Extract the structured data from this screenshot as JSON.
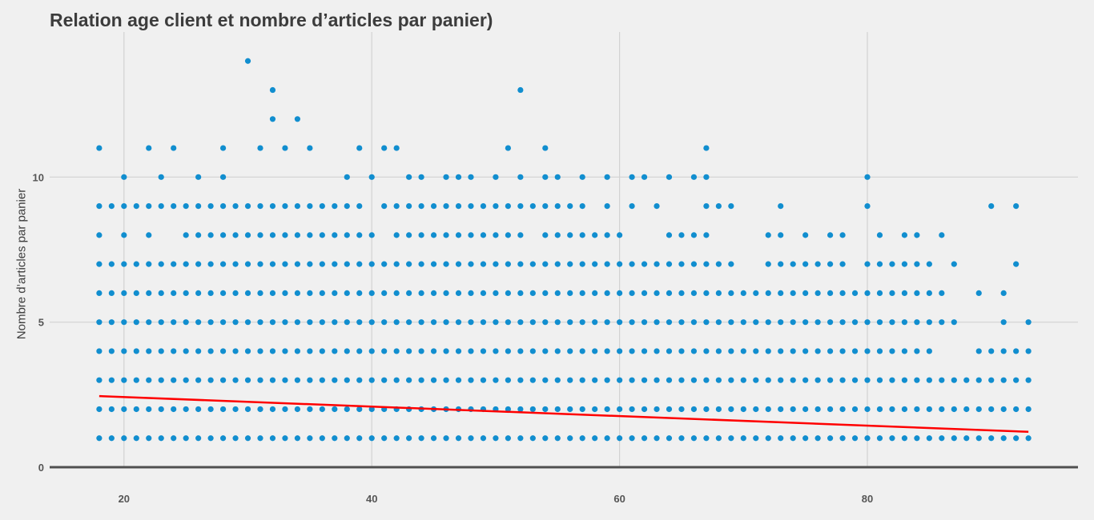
{
  "chart_data": {
    "type": "scatter",
    "title": "Relation age client et nombre d’articles par panier)",
    "xlabel": "",
    "ylabel": "Nombre d’articles par panier",
    "xlim": [
      14,
      97
    ],
    "ylim": [
      0,
      15
    ],
    "xticks": [
      20,
      40,
      60,
      80
    ],
    "yticks": [
      0,
      5,
      10
    ],
    "grid": true,
    "colors": {
      "points": "#118ecf",
      "trend": "#ff0000",
      "grid": "#d2d2d2",
      "zero_line": "#505050",
      "background": "#f0f0f0"
    },
    "dense_rows": [
      {
        "y": 1,
        "x_range": [
          18,
          93
        ]
      },
      {
        "y": 2,
        "x_range": [
          18,
          93
        ]
      },
      {
        "y": 3,
        "x_range": [
          18,
          93
        ]
      },
      {
        "y": 4,
        "x_range": [
          18,
          93
        ]
      },
      {
        "y": 5,
        "x_range": [
          18,
          93
        ]
      },
      {
        "y": 6,
        "x_range": [
          18,
          91
        ]
      },
      {
        "y": 7,
        "x_range": [
          18,
          92
        ]
      },
      {
        "y": 8,
        "x_range": [
          18,
          86
        ]
      },
      {
        "y": 9,
        "x_range": [
          18,
          92
        ]
      }
    ],
    "row_gaps": {
      "4": [
        86,
        87,
        88
      ],
      "5": [
        88,
        89,
        90,
        92
      ],
      "6": [
        87,
        88,
        90
      ],
      "7": [
        70,
        71,
        79,
        86,
        88,
        89,
        90,
        91
      ],
      "8": [
        19,
        21,
        23,
        24,
        41,
        53,
        61,
        62,
        63,
        68,
        69,
        70,
        71,
        74,
        76,
        79,
        80,
        82,
        85
      ],
      "9": [
        40,
        58,
        60,
        62,
        64,
        65,
        66,
        70,
        71,
        72,
        74,
        75,
        76,
        77,
        78,
        79,
        81,
        82,
        83,
        84,
        85,
        86,
        87,
        88,
        89,
        91
      ]
    },
    "sparse_points": [
      [
        18,
        11
      ],
      [
        22,
        11
      ],
      [
        24,
        11
      ],
      [
        28,
        11
      ],
      [
        31,
        11
      ],
      [
        33,
        11
      ],
      [
        35,
        11
      ],
      [
        39,
        11
      ],
      [
        41,
        11
      ],
      [
        42,
        11
      ],
      [
        51,
        11
      ],
      [
        54,
        11
      ],
      [
        67,
        11
      ],
      [
        20,
        10
      ],
      [
        23,
        10
      ],
      [
        26,
        10
      ],
      [
        28,
        10
      ],
      [
        38,
        10
      ],
      [
        40,
        10
      ],
      [
        43,
        10
      ],
      [
        44,
        10
      ],
      [
        46,
        10
      ],
      [
        47,
        10
      ],
      [
        48,
        10
      ],
      [
        50,
        10
      ],
      [
        52,
        10
      ],
      [
        54,
        10
      ],
      [
        55,
        10
      ],
      [
        57,
        10
      ],
      [
        59,
        10
      ],
      [
        61,
        10
      ],
      [
        62,
        10
      ],
      [
        64,
        10
      ],
      [
        66,
        10
      ],
      [
        67,
        10
      ],
      [
        80,
        10
      ],
      [
        32,
        12
      ],
      [
        34,
        12
      ],
      [
        32,
        13
      ],
      [
        52,
        13
      ],
      [
        30,
        14
      ]
    ],
    "trend_line": {
      "x": [
        18,
        93
      ],
      "y": [
        2.45,
        1.22
      ]
    }
  }
}
